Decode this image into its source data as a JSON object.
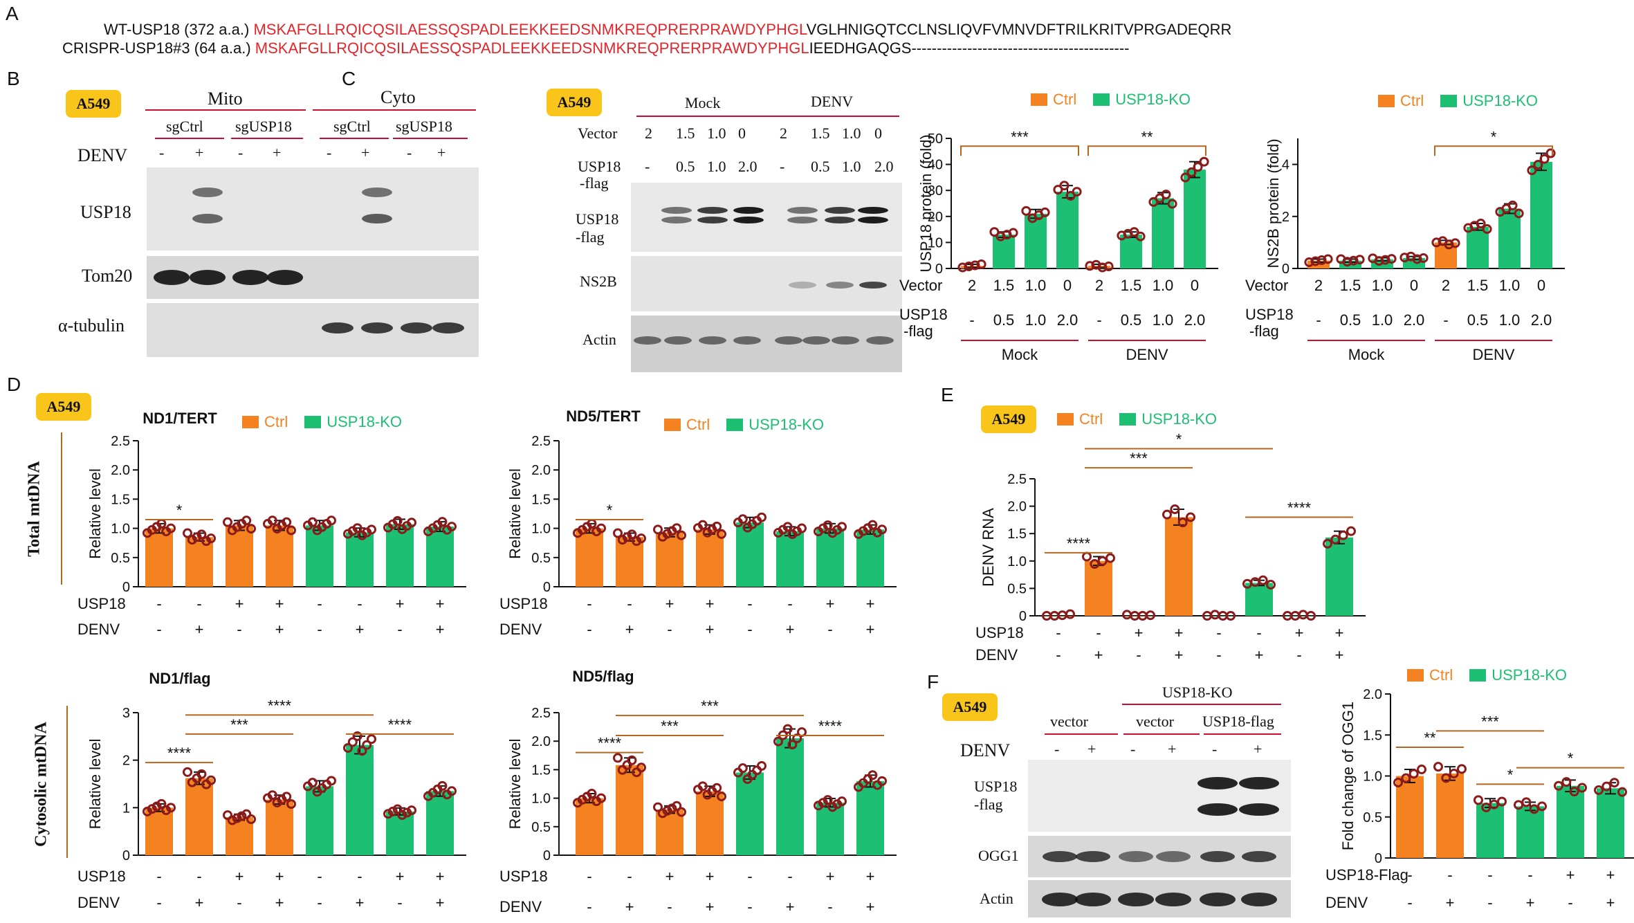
{
  "panels": {
    "A": "A",
    "B": "B",
    "C": "C",
    "D": "D",
    "E": "E",
    "F": "F"
  },
  "cell_line": "A549",
  "colors": {
    "ctrl": "#f58220",
    "ko": "#1dbf73",
    "seq_red": "#e3262b",
    "dot": "#8b1a1a"
  },
  "seq": {
    "wt_label": "WT-USP18 (372 a.a.)",
    "ko_label": "CRISPR-USP18#3 (64 a.a.)",
    "shared": "MSKAFGLLRQICQSILAESSQSPADLEEKKEEDSNMKREQPRERPRAWDYPHGL",
    "wt_tail": "VGLHNIGQTCCLNSLIQVFVMNVDFTRILKRITVPRGADEQRR",
    "ko_tail": "IEEDHGAQGS-------------------------------------------"
  },
  "blot_b": {
    "groups": [
      "Mito",
      "Cyto"
    ],
    "lanes": [
      "sgCtrl",
      "sgUSP18",
      "sgCtrl",
      "sgUSP18"
    ],
    "treat_label": "DENV",
    "treat": [
      "-",
      "+",
      "-",
      "+",
      "-",
      "+",
      "-",
      "+"
    ],
    "rows": [
      "USP18",
      "Tom20",
      "α-tubulin"
    ]
  },
  "blot_c": {
    "groups": [
      "Mock",
      "DENV"
    ],
    "vector_label": "Vector",
    "vector": [
      "2",
      "1.5",
      "1.0",
      "0",
      "2",
      "1.5",
      "1.0",
      "0"
    ],
    "usp_label_1": "USP18",
    "usp_label_2": "-flag",
    "usp": [
      "-",
      "0.5",
      "1.0",
      "2.0",
      "-",
      "0.5",
      "1.0",
      "2.0"
    ],
    "rows": [
      "USP18\n-flag",
      "NS2B",
      "Actin"
    ]
  },
  "blot_f": {
    "header_ko": "USP18-KO",
    "lanes": [
      "vector",
      "vector",
      "USP18-flag"
    ],
    "treat_label": "DENV",
    "treat": [
      "-",
      "+",
      "-",
      "+",
      "-",
      "+"
    ],
    "rows": [
      "USP18\n-flag",
      "OGG1",
      "Actin"
    ]
  },
  "legend": {
    "ctrl": "Ctrl",
    "ko": "USP18-KO"
  },
  "side_labels": {
    "total": "Total mtDNA",
    "cyto": "Cytosolic mtDNA"
  },
  "chart_data": [
    {
      "id": "C1",
      "type": "bar",
      "ylabel": "USP18 protein (fold)",
      "ylim": [
        0,
        50
      ],
      "yticks": [
        0,
        10,
        20,
        30,
        40,
        50
      ],
      "values": [
        1,
        13,
        21,
        29.5,
        1,
        13,
        27,
        38
      ],
      "colors": [
        "ctrl",
        "ko",
        "ko",
        "ko",
        "ctrl",
        "ko",
        "ko",
        "ko"
      ],
      "row1_label": "Vector",
      "row1": [
        "2",
        "1.5",
        "1.0",
        "0",
        "2",
        "1.5",
        "1.0",
        "0"
      ],
      "row2_label": "USP18\n-flag",
      "row2": [
        "-",
        "0.5",
        "1.0",
        "2.0",
        "-",
        "0.5",
        "1.0",
        "2.0"
      ],
      "groups": [
        "Mock",
        "DENV"
      ],
      "sig": [
        {
          "a": 0,
          "b": 3,
          "y": 47,
          "label": "***"
        },
        {
          "a": 4,
          "b": 7,
          "y": 47,
          "label": "**"
        }
      ]
    },
    {
      "id": "C2",
      "type": "bar",
      "ylabel": "NS2B protein (fold)",
      "ylim": [
        0,
        5
      ],
      "yticks": [
        0,
        2,
        4
      ],
      "values": [
        0.3,
        0.3,
        0.35,
        0.4,
        1,
        1.6,
        2.3,
        4.1
      ],
      "colors": [
        "ctrl",
        "ko",
        "ko",
        "ko",
        "ctrl",
        "ko",
        "ko",
        "ko"
      ],
      "row1_label": "Vector",
      "row1": [
        "2",
        "1.5",
        "1.0",
        "0",
        "2",
        "1.5",
        "1.0",
        "0"
      ],
      "row2_label": "USP18\n-flag",
      "row2": [
        "-",
        "0.5",
        "1.0",
        "2.0",
        "-",
        "0.5",
        "1.0",
        "2.0"
      ],
      "groups": [
        "Mock",
        "DENV"
      ],
      "sig": [
        {
          "a": 4,
          "b": 7,
          "y": 4.7,
          "label": "*"
        }
      ]
    },
    {
      "id": "D1",
      "type": "bar",
      "title": "ND1/TERT",
      "ylabel": "Relative level",
      "ylim": [
        0,
        2.5
      ],
      "yticks": [
        0,
        0.5,
        1.0,
        1.5,
        2.0,
        2.5
      ],
      "values": [
        1.0,
        0.85,
        1.05,
        1.05,
        1.05,
        0.93,
        1.07,
        1.03
      ],
      "colors": [
        "ctrl",
        "ctrl",
        "ctrl",
        "ctrl",
        "ko",
        "ko",
        "ko",
        "ko"
      ],
      "row1_label": "USP18",
      "row1": [
        "-",
        "-",
        "+",
        "+",
        "-",
        "-",
        "+",
        "+"
      ],
      "row2_label": "DENV",
      "row2": [
        "-",
        "+",
        "-",
        "+",
        "-",
        "+",
        "-",
        "+"
      ],
      "sig": [
        {
          "a": 0,
          "b": 1,
          "y": 1.15,
          "label": "*"
        }
      ]
    },
    {
      "id": "D2",
      "type": "bar",
      "title": "ND5/TERT",
      "ylabel": "Relative level",
      "ylim": [
        0,
        2.5
      ],
      "yticks": [
        0,
        0.5,
        1.0,
        1.5,
        2.0,
        2.5
      ],
      "values": [
        1.0,
        0.85,
        0.93,
        0.98,
        1.1,
        0.95,
        1.0,
        0.98
      ],
      "colors": [
        "ctrl",
        "ctrl",
        "ctrl",
        "ctrl",
        "ko",
        "ko",
        "ko",
        "ko"
      ],
      "row1_label": "USP18",
      "row1": [
        "-",
        "-",
        "+",
        "+",
        "-",
        "-",
        "+",
        "+"
      ],
      "row2_label": "DENV",
      "row2": [
        "-",
        "+",
        "-",
        "+",
        "-",
        "+",
        "-",
        "+"
      ],
      "sig": [
        {
          "a": 0,
          "b": 1,
          "y": 1.15,
          "label": "*"
        }
      ]
    },
    {
      "id": "D3",
      "type": "bar",
      "title": "ND1/flag",
      "ylabel": "Relative level",
      "ylim": [
        0,
        3
      ],
      "yticks": [
        0,
        1,
        2,
        3
      ],
      "values": [
        1.0,
        1.62,
        0.8,
        1.17,
        1.45,
        2.32,
        0.92,
        1.35
      ],
      "colors": [
        "ctrl",
        "ctrl",
        "ctrl",
        "ctrl",
        "ko",
        "ko",
        "ko",
        "ko"
      ],
      "row1_label": "USP18",
      "row1": [
        "-",
        "-",
        "+",
        "+",
        "-",
        "-",
        "+",
        "+"
      ],
      "row2_label": "DENV",
      "row2": [
        "-",
        "+",
        "-",
        "+",
        "-",
        "+",
        "-",
        "+"
      ],
      "sig": [
        {
          "a": 0,
          "b": 1,
          "y": 1.95,
          "label": "****"
        },
        {
          "a": 1,
          "b": 3,
          "y": 2.55,
          "label": "***"
        },
        {
          "a": 1,
          "b": 5,
          "y": 2.95,
          "label": "****"
        },
        {
          "a": 5,
          "b": 7,
          "y": 2.55,
          "label": "****"
        }
      ]
    },
    {
      "id": "D4",
      "type": "bar",
      "title": "ND5/flag",
      "ylabel": "Relative level",
      "ylim": [
        0,
        2.5
      ],
      "yticks": [
        0,
        0.5,
        1.0,
        1.5,
        2.0,
        2.5
      ],
      "values": [
        1.0,
        1.58,
        0.8,
        1.12,
        1.45,
        2.05,
        0.92,
        1.3
      ],
      "colors": [
        "ctrl",
        "ctrl",
        "ctrl",
        "ctrl",
        "ko",
        "ko",
        "ko",
        "ko"
      ],
      "row1_label": "USP18",
      "row1": [
        "-",
        "-",
        "+",
        "+",
        "-",
        "-",
        "+",
        "+"
      ],
      "row2_label": "DENV",
      "row2": [
        "-",
        "+",
        "-",
        "+",
        "-",
        "+",
        "-",
        "+"
      ],
      "sig": [
        {
          "a": 0,
          "b": 1,
          "y": 1.8,
          "label": "****"
        },
        {
          "a": 1,
          "b": 3,
          "y": 2.1,
          "label": "***"
        },
        {
          "a": 1,
          "b": 5,
          "y": 2.45,
          "label": "***"
        },
        {
          "a": 5,
          "b": 7,
          "y": 2.1,
          "label": "****"
        }
      ]
    },
    {
      "id": "E",
      "type": "bar",
      "ylabel": "DENV RNA",
      "ylim": [
        0,
        2.5
      ],
      "yticks": [
        0,
        0.5,
        1.0,
        1.5,
        2.0,
        2.5
      ],
      "values": [
        0,
        1.0,
        0,
        1.8,
        0,
        0.6,
        0,
        1.43
      ],
      "colors": [
        "ctrl",
        "ctrl",
        "ctrl",
        "ctrl",
        "ko",
        "ko",
        "ko",
        "ko"
      ],
      "row1_label": "USP18",
      "row1": [
        "-",
        "-",
        "+",
        "+",
        "-",
        "-",
        "+",
        "+"
      ],
      "row2_label": "DENV",
      "row2": [
        "-",
        "+",
        "-",
        "+",
        "-",
        "+",
        "-",
        "+"
      ],
      "sig": [
        {
          "a": 0,
          "b": 1,
          "y": 1.15,
          "label": "****"
        },
        {
          "a": 1,
          "b": 3,
          "y": 2.7,
          "label": "***"
        },
        {
          "a": 1,
          "b": 5,
          "y": 3.05,
          "label": "*"
        },
        {
          "a": 5,
          "b": 7,
          "y": 1.8,
          "label": "****"
        }
      ]
    },
    {
      "id": "F",
      "type": "bar",
      "ylabel": "Fold change of OGG1",
      "ylim": [
        0,
        2
      ],
      "yticks": [
        0,
        0.5,
        1.0,
        1.5,
        2.0
      ],
      "values": [
        1.0,
        1.03,
        0.67,
        0.63,
        0.88,
        0.85
      ],
      "colors": [
        "ctrl",
        "ctrl",
        "ko",
        "ko",
        "ko",
        "ko"
      ],
      "row1_label": "USP18-Flag",
      "row1": [
        "-",
        "-",
        "-",
        "-",
        "+",
        "+"
      ],
      "row2_label": "DENV",
      "row2": [
        "-",
        "+",
        "-",
        "+",
        "-",
        "+"
      ],
      "sig": [
        {
          "a": 0,
          "b": 1,
          "y": 1.35,
          "label": "**"
        },
        {
          "a": 1,
          "b": 3,
          "y": 1.55,
          "label": "***"
        },
        {
          "a": 2,
          "b": 3,
          "y": 0.9,
          "label": "*"
        },
        {
          "a": 3,
          "b": 5,
          "y": 1.1,
          "label": "*"
        }
      ]
    }
  ]
}
